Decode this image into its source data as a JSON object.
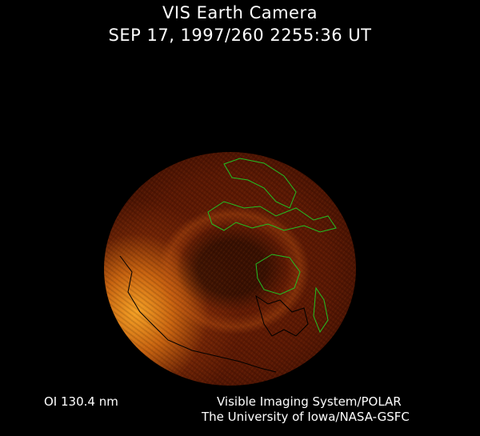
{
  "header": {
    "title": "VIS Earth Camera",
    "timestamp": "SEP 17, 1997/260 2255:36 UT"
  },
  "image": {
    "subject": "earth-disc-aurora",
    "colors": {
      "background": "#000000",
      "disc_dark": "#5a1804",
      "disc_bright": "#ffaa28",
      "coastline_day": "#22c022",
      "coastline_night": "#000000"
    }
  },
  "footer": {
    "wavelength": "OI  130.4 nm",
    "instrument": "Visible Imaging System/POLAR",
    "institution": "The University of Iowa/NASA-GSFC"
  }
}
